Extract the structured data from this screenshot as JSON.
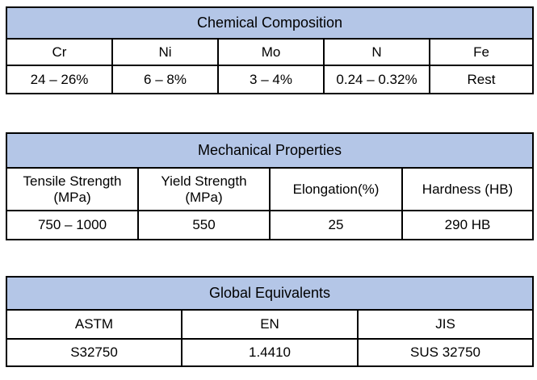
{
  "chemical": {
    "title": "Chemical Composition",
    "headers": [
      "Cr",
      "Ni",
      "Mo",
      "N",
      "Fe"
    ],
    "values": [
      "24 – 26%",
      "6 – 8%",
      "3 – 4%",
      "0.24 – 0.32%",
      "Rest"
    ]
  },
  "mechanical": {
    "title": "Mechanical Properties",
    "headers": [
      "Tensile Strength (MPa)",
      "Yield Strength (MPa)",
      "Elongation(%)",
      "Hardness (HB)"
    ],
    "headers_line1": [
      "Tensile Strength",
      "Yield Strength"
    ],
    "headers_line2": [
      "(MPa)",
      "(MPa)"
    ],
    "values": [
      "750 – 1000",
      "550",
      "25",
      "290 HB"
    ]
  },
  "equivalents": {
    "title": "Global Equivalents",
    "headers": [
      "ASTM",
      "EN",
      "JIS"
    ],
    "values": [
      "S32750",
      "1.4410",
      "SUS 32750"
    ]
  }
}
